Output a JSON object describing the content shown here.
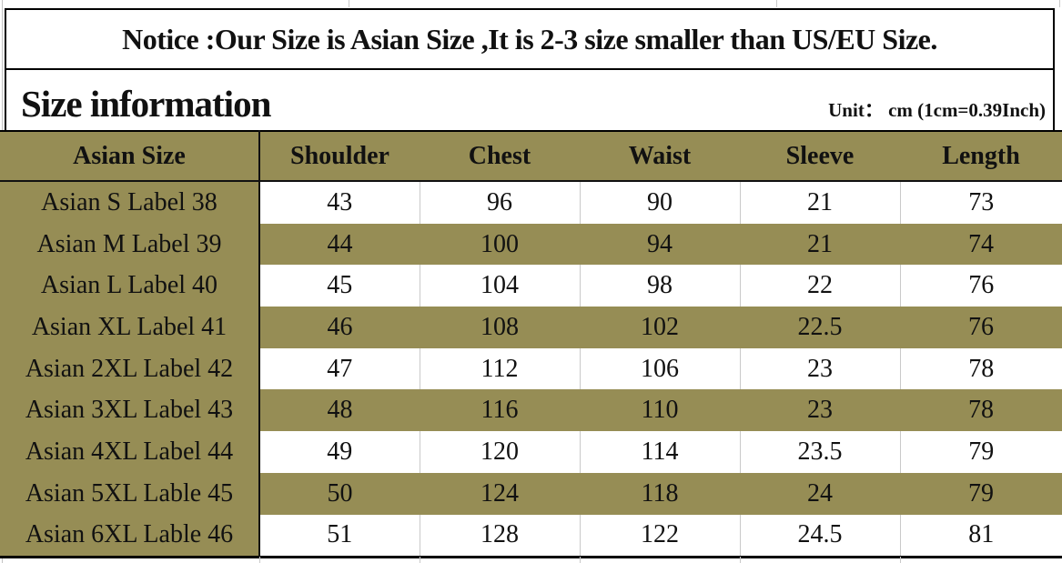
{
  "notice": {
    "text": "Notice :Our Size is Asian Size ,It is 2-3 size smaller than US/EU Size."
  },
  "title": {
    "text": "Size information",
    "unit": "Unit：  cm (1cm=0.39Inch)"
  },
  "colors": {
    "olive": "#968D55",
    "grid_gray": "#c9c9c9",
    "border_black": "#000000"
  },
  "chart_data": {
    "type": "table",
    "title": "Size information",
    "unit": "cm (1cm=0.39Inch)",
    "columns": [
      "Asian Size",
      "Shoulder",
      "Chest",
      "Waist",
      "Sleeve",
      "Length"
    ],
    "rows": [
      [
        "Asian S Label 38",
        43,
        96,
        90,
        21,
        73
      ],
      [
        "Asian M Label 39",
        44,
        100,
        94,
        21,
        74
      ],
      [
        "Asian L Label 40",
        45,
        104,
        98,
        22,
        76
      ],
      [
        "Asian XL Label 41",
        46,
        108,
        102,
        22.5,
        76
      ],
      [
        "Asian 2XL Label 42",
        47,
        112,
        106,
        23,
        78
      ],
      [
        "Asian 3XL Label 43",
        48,
        116,
        110,
        23,
        78
      ],
      [
        "Asian 4XL Label 44",
        49,
        120,
        114,
        23.5,
        79
      ],
      [
        "Asian 5XL Lable 45",
        50,
        124,
        118,
        24,
        79
      ],
      [
        "Asian 6XL Lable 46",
        51,
        128,
        122,
        24.5,
        81
      ]
    ],
    "layout": {
      "row_striping": "white / olive alternating, first data row white",
      "label_column_background": "olive",
      "legend": "none",
      "grid": "light gray vertical separators on white rows only"
    }
  }
}
